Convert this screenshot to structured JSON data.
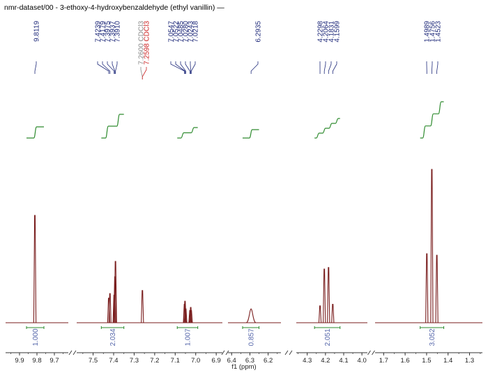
{
  "title": "nmr-dataset/00 - 3-ethoxy-4-hydroxybenzaldehyde (ethyl vanillin) —",
  "colors": {
    "spectrum": "#7a1e1e",
    "peak_label": "#1f2a7a",
    "solvent_ref": "#888888",
    "solvent_obs": "#cc2222",
    "integral": "#2e8b2e",
    "integral_value": "#5566aa",
    "axis": "#333333"
  },
  "chart_data": {
    "type": "line",
    "xlabel": "f1 (ppm)",
    "x_reversed": true,
    "segments": [
      {
        "range": [
          9.98,
          9.62
        ],
        "ticks": [
          "9.9",
          "9.8",
          "9.7"
        ]
      },
      {
        "range": [
          7.58,
          6.87
        ],
        "ticks": [
          "7.5",
          "7.4",
          "7.3",
          "7.2",
          "7.1",
          "7.0",
          "6.9"
        ]
      },
      {
        "range": [
          6.42,
          6.13
        ],
        "ticks": [
          "6.4",
          "6.3",
          "6.2"
        ]
      },
      {
        "range": [
          4.36,
          3.97
        ],
        "ticks": [
          "4.3",
          "4.2",
          "4.1",
          "4.0"
        ]
      },
      {
        "range": [
          1.74,
          1.24
        ],
        "ticks": [
          "1.7",
          "1.6",
          "1.5",
          "1.4",
          "1.3"
        ]
      }
    ],
    "peaks": [
      {
        "ppm": 9.8119,
        "height": 0.7
      },
      {
        "ppm": 7.4239,
        "height": 0.16
      },
      {
        "ppm": 7.4179,
        "height": 0.19
      },
      {
        "ppm": 7.3975,
        "height": 0.18
      },
      {
        "ppm": 7.3937,
        "height": 0.3
      },
      {
        "ppm": 7.391,
        "height": 0.4
      },
      {
        "ppm": 7.2598,
        "height": 0.21
      },
      {
        "ppm": 7.0547,
        "height": 0.12
      },
      {
        "ppm": 7.0522,
        "height": 0.14
      },
      {
        "ppm": 7.0485,
        "height": 0.09
      },
      {
        "ppm": 7.028,
        "height": 0.08
      },
      {
        "ppm": 7.0243,
        "height": 0.1
      },
      {
        "ppm": 7.0218,
        "height": 0.08
      },
      {
        "ppm": 6.2935,
        "height": 0.09,
        "broad": true
      },
      {
        "ppm": 4.2298,
        "height": 0.11
      },
      {
        "ppm": 4.2064,
        "height": 0.35
      },
      {
        "ppm": 4.1831,
        "height": 0.36
      },
      {
        "ppm": 4.1599,
        "height": 0.12
      },
      {
        "ppm": 1.4989,
        "height": 0.45
      },
      {
        "ppm": 1.4756,
        "height": 1.0
      },
      {
        "ppm": 1.4523,
        "height": 0.44
      }
    ],
    "peak_labels": [
      {
        "text": "9.8119",
        "ppm": 9.8119,
        "kind": "peak"
      },
      {
        "text": "7.4239",
        "ppm": 7.4239,
        "kind": "peak"
      },
      {
        "text": "7.4179",
        "ppm": 7.4179,
        "kind": "peak"
      },
      {
        "text": "7.3975",
        "ppm": 7.3975,
        "kind": "peak"
      },
      {
        "text": "7.3937",
        "ppm": 7.3937,
        "kind": "peak"
      },
      {
        "text": "7.3910",
        "ppm": 7.391,
        "kind": "peak"
      },
      {
        "text": "7.2600 CDCl3",
        "ppm": 7.26,
        "kind": "ref"
      },
      {
        "text": "7.2598 CDCl3",
        "ppm": 7.2598,
        "kind": "obs"
      },
      {
        "text": "7.0547",
        "ppm": 7.0547,
        "kind": "peak"
      },
      {
        "text": "7.0522",
        "ppm": 7.0522,
        "kind": "peak"
      },
      {
        "text": "7.0485",
        "ppm": 7.0485,
        "kind": "peak"
      },
      {
        "text": "7.0280",
        "ppm": 7.028,
        "kind": "peak"
      },
      {
        "text": "7.0243",
        "ppm": 7.0243,
        "kind": "peak"
      },
      {
        "text": "7.0218",
        "ppm": 7.0218,
        "kind": "peak"
      },
      {
        "text": "6.2935",
        "ppm": 6.2935,
        "kind": "peak"
      },
      {
        "text": "4.2298",
        "ppm": 4.2298,
        "kind": "peak"
      },
      {
        "text": "4.2064",
        "ppm": 4.2064,
        "kind": "peak"
      },
      {
        "text": "4.1831",
        "ppm": 4.1831,
        "kind": "peak"
      },
      {
        "text": "4.1599",
        "ppm": 4.1599,
        "kind": "peak"
      },
      {
        "text": "1.4989",
        "ppm": 1.4989,
        "kind": "peak"
      },
      {
        "text": "1.4756",
        "ppm": 1.4756,
        "kind": "peak"
      },
      {
        "text": "1.4523",
        "ppm": 1.4523,
        "kind": "peak"
      }
    ],
    "integrals": [
      {
        "from": 9.86,
        "to": 9.76,
        "value": "1.000",
        "steps": 1
      },
      {
        "from": 7.46,
        "to": 7.35,
        "value": "2.034",
        "steps": 2
      },
      {
        "from": 7.09,
        "to": 6.99,
        "value": "1.007",
        "steps": 2
      },
      {
        "from": 6.34,
        "to": 6.25,
        "value": "0.857",
        "steps": 1
      },
      {
        "from": 4.26,
        "to": 4.12,
        "value": "2.051",
        "steps": 4
      },
      {
        "from": 1.53,
        "to": 1.42,
        "value": "3.052",
        "steps": 3
      }
    ]
  }
}
